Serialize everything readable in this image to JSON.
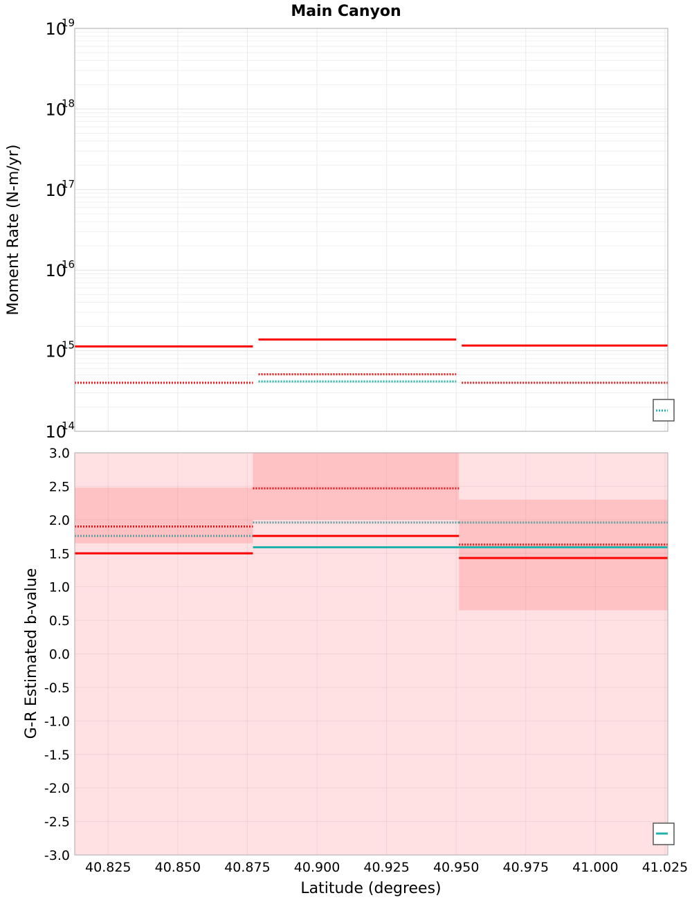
{
  "figure": {
    "title": "Main Canyon",
    "xlabel": "Latitude (degrees)"
  },
  "chart_data": [
    {
      "type": "line",
      "title": "Main Canyon",
      "xlabel": "Latitude (degrees)",
      "ylabel": "Moment Rate (N-m/yr)",
      "yscale": "log",
      "xlim": [
        40.813,
        41.026
      ],
      "ylim": [
        100000000000000.0,
        1e+19
      ],
      "x_ticks": [
        "40.825",
        "40.850",
        "40.875",
        "40.900",
        "40.925",
        "40.950",
        "40.975",
        "41.000",
        "41.025"
      ],
      "y_ticks": [
        {
          "base": "10",
          "exp": "14",
          "value": 100000000000000.0
        },
        {
          "base": "10",
          "exp": "15",
          "value": 1000000000000000.0
        },
        {
          "base": "10",
          "exp": "16",
          "value": 1e+16
        },
        {
          "base": "10",
          "exp": "17",
          "value": 1e+17
        },
        {
          "base": "10",
          "exp": "18",
          "value": 1e+18
        },
        {
          "base": "10",
          "exp": "19",
          "value": 1e+19
        }
      ],
      "grid": true,
      "legend_position": "bottom-right (clipped)",
      "series": [
        {
          "color": "#ff0000",
          "style": "solid",
          "segments": [
            [
              40.813,
              40.877,
              1130000000000000.0
            ],
            [
              40.879,
              40.95,
              1380000000000000.0
            ],
            [
              40.952,
              41.026,
              1160000000000000.0
            ]
          ]
        },
        {
          "color": "#e31a1c",
          "style": "dotted",
          "segments": [
            [
              40.813,
              40.877,
              400000000000000.0
            ],
            [
              40.879,
              40.95,
              510000000000000.0
            ],
            [
              40.952,
              41.026,
              400000000000000.0
            ]
          ]
        },
        {
          "color": "#20b2aa",
          "style": "dotted",
          "segments": [
            [
              40.879,
              40.95,
              415000000000000.0
            ]
          ]
        }
      ]
    },
    {
      "type": "line",
      "xlabel": "Latitude (degrees)",
      "ylabel": "G-R Estimated b-value",
      "xlim": [
        40.813,
        41.026
      ],
      "ylim": [
        -3.0,
        3.0
      ],
      "x_ticks": [
        "40.825",
        "40.850",
        "40.875",
        "40.900",
        "40.925",
        "40.950",
        "40.975",
        "41.000",
        "41.025"
      ],
      "y_ticks": [
        "3.0",
        "2.5",
        "2.0",
        "1.5",
        "1.0",
        "0.5",
        "0.0",
        "-0.5",
        "-1.0",
        "-1.5",
        "-2.0",
        "-2.5",
        "-3.0"
      ],
      "grid": true,
      "legend_position": "bottom-right (clipped)",
      "bands": [
        {
          "color": "#ffe0e3",
          "segments": [
            [
              40.813,
              40.877,
              -3.0,
              3.0
            ],
            [
              40.877,
              40.951,
              -3.0,
              3.0
            ],
            [
              40.951,
              41.026,
              -3.0,
              3.0
            ]
          ]
        },
        {
          "color": "#ffc2c4",
          "segments": [
            [
              40.813,
              40.877,
              1.65,
              2.48
            ],
            [
              40.877,
              40.951,
              2.0,
              3.0
            ],
            [
              40.951,
              41.026,
              0.65,
              2.3
            ]
          ]
        }
      ],
      "series": [
        {
          "color": "#ff0000",
          "style": "solid",
          "segments": [
            [
              40.813,
              40.877,
              1.5
            ],
            [
              40.877,
              40.951,
              1.76
            ],
            [
              40.951,
              41.026,
              1.43
            ]
          ]
        },
        {
          "color": "#e31a1c",
          "style": "dotted",
          "segments": [
            [
              40.813,
              40.877,
              1.9
            ],
            [
              40.877,
              40.951,
              2.47
            ],
            [
              40.951,
              41.026,
              1.63
            ]
          ]
        },
        {
          "color": "#5f9ea0",
          "style": "dotted",
          "segments": [
            [
              40.813,
              40.877,
              1.76
            ],
            [
              40.877,
              40.951,
              1.96
            ],
            [
              40.951,
              41.026,
              1.96
            ]
          ]
        },
        {
          "color": "#20b2aa",
          "style": "solid",
          "segments": [
            [
              40.877,
              40.951,
              1.59
            ],
            [
              40.951,
              41.026,
              1.59
            ]
          ]
        }
      ]
    }
  ]
}
